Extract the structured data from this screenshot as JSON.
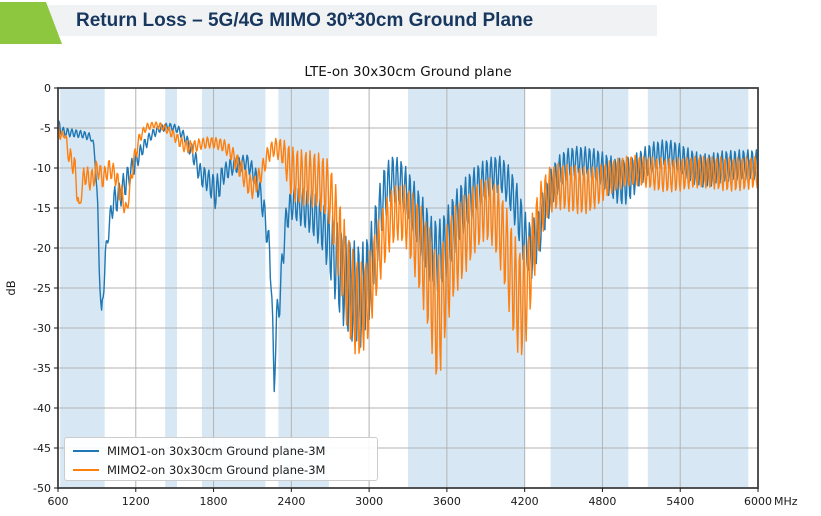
{
  "header": {
    "title": "Return Loss – 5G/4G MIMO 30*30cm Ground Plane",
    "accent_color": "#8dc63f",
    "bar_color": "#f1f2f4",
    "text_color": "#17375e"
  },
  "chart_data": {
    "type": "line",
    "title": "LTE-on 30x30cm Ground plane",
    "ylabel": "dB",
    "x_unit_label": "MHz",
    "xlim": [
      600,
      6000
    ],
    "ylim": [
      -50,
      0
    ],
    "xticks": [
      600,
      1200,
      1800,
      2400,
      3000,
      3600,
      4200,
      4800,
      5400,
      6000
    ],
    "yticks": [
      0,
      -5,
      -10,
      -15,
      -20,
      -25,
      -30,
      -35,
      -40,
      -45,
      -50
    ],
    "grid": true,
    "grid_color": "#b3b3b3",
    "frame_color": "#404040",
    "band_color": "#d7e8f4",
    "legend_position": "lower-left",
    "shaded_bands_mhz": [
      [
        617,
        960
      ],
      [
        1427,
        1518
      ],
      [
        1710,
        2200
      ],
      [
        2300,
        2690
      ],
      [
        3300,
        4200
      ],
      [
        4400,
        5000
      ],
      [
        5150,
        5925
      ]
    ],
    "ripple_period_mhz": 33,
    "point_keys": [
      "mhz",
      "db_mid",
      "ripple_amp_db"
    ],
    "series": [
      {
        "name": "MIMO1-on 30x30cm Ground plane-3M",
        "color": "#1f77b4",
        "ripple_phase": 0,
        "points": [
          [
            600,
            -4.8,
            0.9
          ],
          [
            640,
            -5.5,
            0.6
          ],
          [
            700,
            -5.6,
            0.5
          ],
          [
            790,
            -5.8,
            0.45
          ],
          [
            860,
            -6.2,
            0.5
          ],
          [
            890,
            -9,
            1
          ],
          [
            915,
            -20,
            2
          ],
          [
            934,
            -28.6,
            0.4
          ],
          [
            950,
            -25.5,
            1.2
          ],
          [
            965,
            -21,
            1
          ],
          [
            985,
            -18.5,
            1
          ],
          [
            1020,
            -14.5,
            1.8
          ],
          [
            1080,
            -13.2,
            1.8
          ],
          [
            1140,
            -11.2,
            1.6
          ],
          [
            1200,
            -9.2,
            1.2
          ],
          [
            1260,
            -7.3,
            0.8
          ],
          [
            1320,
            -5.9,
            0.6
          ],
          [
            1380,
            -5.1,
            0.5
          ],
          [
            1450,
            -4.8,
            0.45
          ],
          [
            1520,
            -5.1,
            0.5
          ],
          [
            1580,
            -6.2,
            0.7
          ],
          [
            1650,
            -8.6,
            1.1
          ],
          [
            1700,
            -10.9,
            1.4
          ],
          [
            1760,
            -11.6,
            1.4
          ],
          [
            1820,
            -13.2,
            2.2
          ],
          [
            1870,
            -10.9,
            1.3
          ],
          [
            1930,
            -9.9,
            1.1
          ],
          [
            2000,
            -9.5,
            1
          ],
          [
            2060,
            -9.3,
            1
          ],
          [
            2120,
            -11,
            1.3
          ],
          [
            2170,
            -13.8,
            1.6
          ],
          [
            2210,
            -17.5,
            2
          ],
          [
            2245,
            -23,
            2.5
          ],
          [
            2268,
            -37.8,
            0.5
          ],
          [
            2285,
            -29,
            2
          ],
          [
            2312,
            -26.5,
            1.8
          ],
          [
            2335,
            -20.5,
            2.2
          ],
          [
            2365,
            -16,
            2
          ],
          [
            2410,
            -14.3,
            2
          ],
          [
            2470,
            -14.8,
            2.4
          ],
          [
            2530,
            -15.3,
            2.6
          ],
          [
            2590,
            -16,
            3
          ],
          [
            2650,
            -17.6,
            3.2
          ],
          [
            2700,
            -19.5,
            4.5
          ],
          [
            2760,
            -22.5,
            5.5
          ],
          [
            2820,
            -24.5,
            6
          ],
          [
            2880,
            -25.5,
            6.5
          ],
          [
            2940,
            -26,
            6.5
          ],
          [
            3000,
            -23.5,
            5.5
          ],
          [
            3060,
            -17.8,
            4.4
          ],
          [
            3120,
            -13,
            3.4
          ],
          [
            3180,
            -11.3,
            2.9
          ],
          [
            3240,
            -11.8,
            3
          ],
          [
            3300,
            -13.4,
            3.2
          ],
          [
            3360,
            -15.6,
            3.6
          ],
          [
            3420,
            -18,
            4.2
          ],
          [
            3480,
            -20.5,
            4.5
          ],
          [
            3540,
            -21,
            4.5
          ],
          [
            3600,
            -19.2,
            4.2
          ],
          [
            3660,
            -16.8,
            3.8
          ],
          [
            3720,
            -15,
            3.4
          ],
          [
            3780,
            -13.5,
            3.1
          ],
          [
            3840,
            -12.3,
            2.8
          ],
          [
            3900,
            -11.4,
            2.5
          ],
          [
            3960,
            -10.8,
            2.3
          ],
          [
            4020,
            -10.8,
            2.3
          ],
          [
            4080,
            -12.3,
            2.6
          ],
          [
            4140,
            -15,
            3.1
          ],
          [
            4200,
            -18.8,
            3.5
          ],
          [
            4250,
            -20.5,
            3.5
          ],
          [
            4300,
            -18.5,
            3.3
          ],
          [
            4360,
            -14.8,
            2.9
          ],
          [
            4420,
            -12,
            2.5
          ],
          [
            4480,
            -10.2,
            2.1
          ],
          [
            4540,
            -9.4,
            1.9
          ],
          [
            4600,
            -9.1,
            1.8
          ],
          [
            4660,
            -9.1,
            1.8
          ],
          [
            4720,
            -9.4,
            1.9
          ],
          [
            4780,
            -9.9,
            2.1
          ],
          [
            4840,
            -10.8,
            2.5
          ],
          [
            4900,
            -11.5,
            2.8
          ],
          [
            4960,
            -11.8,
            3
          ],
          [
            5020,
            -11.3,
            2.7
          ],
          [
            5080,
            -10.2,
            2.3
          ],
          [
            5140,
            -9.2,
            2
          ],
          [
            5200,
            -8.5,
            1.8
          ],
          [
            5260,
            -8.2,
            1.7
          ],
          [
            5320,
            -8.2,
            1.7
          ],
          [
            5380,
            -8.6,
            1.8
          ],
          [
            5440,
            -9.3,
            2
          ],
          [
            5500,
            -9.9,
            2.1
          ],
          [
            5560,
            -10.3,
            2.1
          ],
          [
            5620,
            -10.3,
            2.1
          ],
          [
            5680,
            -10,
            2
          ],
          [
            5740,
            -9.8,
            2
          ],
          [
            5800,
            -9.7,
            1.9
          ],
          [
            5860,
            -9.6,
            1.9
          ],
          [
            5920,
            -9.6,
            1.9
          ],
          [
            6000,
            -9.6,
            1.9
          ]
        ]
      },
      {
        "name": "MIMO2-on 30x30cm Ground plane-3M",
        "color": "#ff7f0e",
        "ripple_phase": 2.0,
        "points": [
          [
            600,
            -4.6,
            0.7
          ],
          [
            622,
            -6.2,
            0.7
          ],
          [
            648,
            -5.6,
            0.6
          ],
          [
            690,
            -8.8,
            1.2
          ],
          [
            718,
            -9.2,
            1.6
          ],
          [
            745,
            -12,
            2
          ],
          [
            763,
            -15.3,
            0.6
          ],
          [
            800,
            -10.8,
            1.2
          ],
          [
            860,
            -11.6,
            1.4
          ],
          [
            905,
            -10,
            1.2
          ],
          [
            947,
            -11.4,
            1.2
          ],
          [
            990,
            -10,
            1.1
          ],
          [
            1040,
            -10.8,
            1.2
          ],
          [
            1090,
            -13.5,
            1.5
          ],
          [
            1130,
            -15.4,
            0.8
          ],
          [
            1180,
            -9.5,
            1.2
          ],
          [
            1230,
            -6.2,
            0.7
          ],
          [
            1280,
            -4.9,
            0.45
          ],
          [
            1340,
            -4.6,
            0.4
          ],
          [
            1400,
            -4.8,
            0.45
          ],
          [
            1460,
            -5.4,
            0.5
          ],
          [
            1520,
            -6.4,
            0.7
          ],
          [
            1580,
            -7.3,
            0.8
          ],
          [
            1640,
            -7.4,
            0.8
          ],
          [
            1700,
            -7,
            0.7
          ],
          [
            1760,
            -6.8,
            0.7
          ],
          [
            1820,
            -6.9,
            0.7
          ],
          [
            1880,
            -7.2,
            0.8
          ],
          [
            1940,
            -8.2,
            1
          ],
          [
            2000,
            -9.9,
            1.3
          ],
          [
            2060,
            -11.8,
            1.4
          ],
          [
            2105,
            -12.6,
            1.3
          ],
          [
            2160,
            -10.9,
            1.2
          ],
          [
            2220,
            -8.3,
            1.1
          ],
          [
            2270,
            -7.4,
            1.1
          ],
          [
            2330,
            -7.9,
            1.6
          ],
          [
            2400,
            -10.6,
            3.3
          ],
          [
            2470,
            -11.2,
            3.5
          ],
          [
            2540,
            -11.3,
            3.5
          ],
          [
            2610,
            -11.6,
            3.5
          ],
          [
            2690,
            -12.8,
            3.8
          ],
          [
            2750,
            -17.5,
            5
          ],
          [
            2810,
            -22.5,
            6
          ],
          [
            2870,
            -26.5,
            6.5
          ],
          [
            2930,
            -27.8,
            6
          ],
          [
            2990,
            -26.5,
            5.2
          ],
          [
            3050,
            -22,
            4.6
          ],
          [
            3110,
            -18.6,
            4
          ],
          [
            3170,
            -16.2,
            3.7
          ],
          [
            3230,
            -15.4,
            3.5
          ],
          [
            3290,
            -16.2,
            4
          ],
          [
            3350,
            -18.4,
            5
          ],
          [
            3410,
            -21,
            6
          ],
          [
            3470,
            -24.5,
            7
          ],
          [
            3530,
            -29.5,
            8.5
          ],
          [
            3580,
            -25,
            7
          ],
          [
            3640,
            -21,
            5.8
          ],
          [
            3700,
            -19.3,
            5.5
          ],
          [
            3760,
            -17.8,
            4.8
          ],
          [
            3820,
            -16.2,
            4.3
          ],
          [
            3880,
            -15.2,
            4
          ],
          [
            3940,
            -15.3,
            4.1
          ],
          [
            4000,
            -17,
            4.8
          ],
          [
            4060,
            -20.5,
            5.6
          ],
          [
            4120,
            -25,
            6.8
          ],
          [
            4170,
            -27.3,
            7
          ],
          [
            4220,
            -25,
            6.2
          ],
          [
            4270,
            -19.5,
            4.7
          ],
          [
            4330,
            -15,
            3.6
          ],
          [
            4390,
            -12.8,
            2.9
          ],
          [
            4450,
            -12.3,
            2.9
          ],
          [
            4510,
            -12.4,
            2.9
          ],
          [
            4570,
            -12.6,
            3
          ],
          [
            4630,
            -12.8,
            3
          ],
          [
            4690,
            -12.8,
            2.9
          ],
          [
            4750,
            -12.4,
            2.6
          ],
          [
            4810,
            -11.7,
            2.3
          ],
          [
            4870,
            -11.1,
            2.1
          ],
          [
            4930,
            -10.7,
            2
          ],
          [
            4990,
            -10.4,
            1.9
          ],
          [
            5050,
            -10.3,
            1.9
          ],
          [
            5110,
            -10.4,
            1.9
          ],
          [
            5170,
            -10.6,
            2
          ],
          [
            5230,
            -10.8,
            2.1
          ],
          [
            5290,
            -10.9,
            2.1
          ],
          [
            5350,
            -10.9,
            2.1
          ],
          [
            5410,
            -10.8,
            2.1
          ],
          [
            5470,
            -10.6,
            2
          ],
          [
            5530,
            -10.5,
            2
          ],
          [
            5590,
            -10.5,
            2
          ],
          [
            5650,
            -10.6,
            2
          ],
          [
            5710,
            -10.7,
            2.1
          ],
          [
            5770,
            -10.8,
            2.1
          ],
          [
            5830,
            -10.8,
            2.1
          ],
          [
            5890,
            -10.7,
            2.1
          ],
          [
            5950,
            -10.6,
            2
          ],
          [
            6000,
            -10.5,
            2
          ]
        ]
      }
    ]
  }
}
